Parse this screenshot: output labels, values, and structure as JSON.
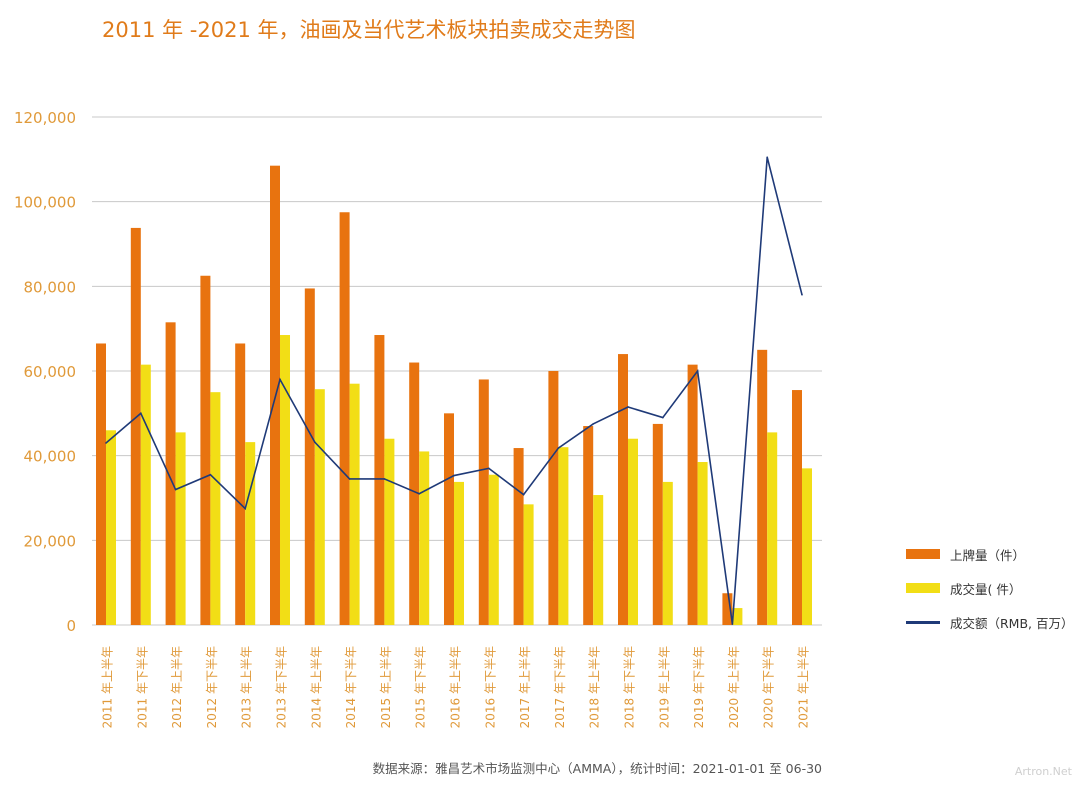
{
  "title": "2011 年 -2021 年，油画及当代艺术板块拍卖成交走势图",
  "source": "数据来源：雅昌艺术市场监测中心（AMMA），统计时间：2021-01-01 至 06-30",
  "watermark": "Artron.Net",
  "colors": {
    "listed": "#e8730f",
    "sold": "#f2de16",
    "turnover": "#1f3a78",
    "axis_text": "#e09a3a",
    "grid": "#c8c8c8"
  },
  "chart_data": {
    "type": "bar",
    "title": "2011 年 -2021 年，油画及当代艺术板块拍卖成交走势图",
    "categories": [
      "2011 年上半年",
      "2011 年下半年",
      "2012 年上半年",
      "2012 年下半年",
      "2013 年上半年",
      "2013 年下半年",
      "2014 年上半年",
      "2014 年下半年",
      "2015 年上半年",
      "2015 年下半年",
      "2016 年上半年",
      "2016 年下半年",
      "2017 年上半年",
      "2017 年下半年",
      "2018 年上半年",
      "2018 年下半年",
      "2019 年上半年",
      "2019 年下半年",
      "2020 年上半年",
      "2020 年下半年",
      "2021 年上半年"
    ],
    "ylim": [
      0,
      120000
    ],
    "yticks": [
      0,
      20000,
      40000,
      60000,
      80000,
      100000,
      120000
    ],
    "ytick_labels": [
      "0",
      "20,000",
      "40,000",
      "60,000",
      "80,000",
      "100,000",
      "120,000"
    ],
    "grid": true,
    "legend_position": "right",
    "series": [
      {
        "name": "上牌量（件）",
        "kind": "bar",
        "color": "#e8730f",
        "values": [
          66500,
          93800,
          71500,
          82500,
          66500,
          108500,
          79500,
          97500,
          68500,
          62000,
          50000,
          58000,
          41800,
          60000,
          47000,
          64000,
          47500,
          61500,
          7500,
          65000,
          55500
        ]
      },
      {
        "name": "成交量( 件）",
        "kind": "bar",
        "color": "#f2de16",
        "values": [
          46000,
          61500,
          45500,
          55000,
          43200,
          68500,
          55700,
          57000,
          44000,
          41000,
          33800,
          35500,
          28500,
          42000,
          30700,
          44000,
          33800,
          38500,
          4000,
          45500,
          37000
        ]
      },
      {
        "name": "成交额（RMB, 百万）",
        "kind": "line",
        "color": "#1f3a78",
        "values": [
          43000,
          50000,
          32000,
          35500,
          27500,
          58000,
          43200,
          34500,
          34500,
          31000,
          35300,
          37000,
          30800,
          41800,
          47500,
          51500,
          49000,
          60000,
          200,
          110500,
          78000
        ]
      }
    ]
  }
}
